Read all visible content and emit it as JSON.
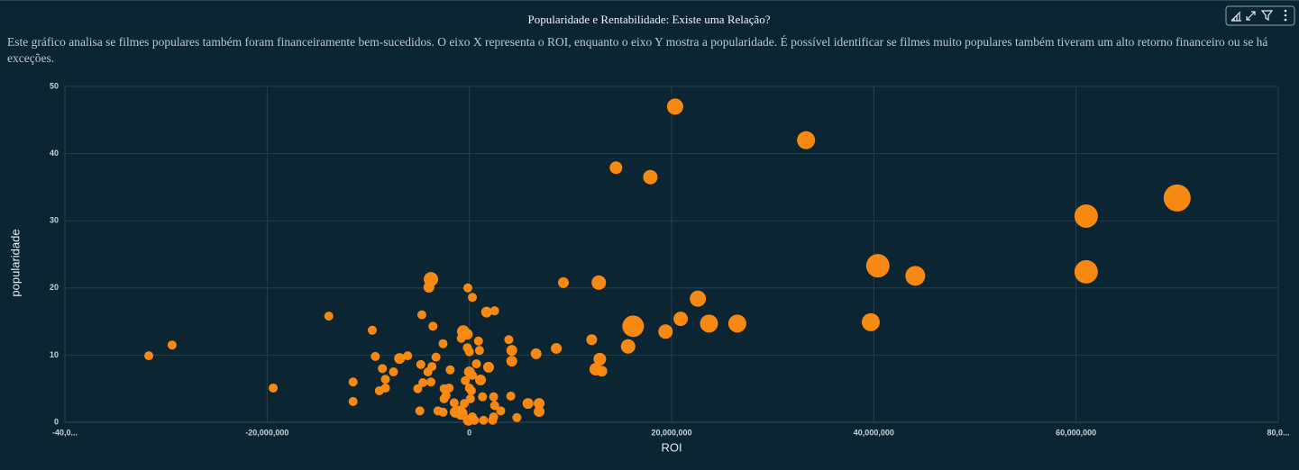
{
  "chart_data": {
    "type": "scatter",
    "title": "Popularidade e Rentabilidade: Existe uma Relação?",
    "subtitle": "Este gráfico analisa se filmes populares também foram financeiramente bem-sucedidos. O eixo X representa o ROI, enquanto o eixo Y mostra a popularidade. É possível identificar se filmes muito populares também tiveram um alto retorno financeiro ou se há exceções.",
    "x_label": "ROI",
    "y_label": "popularidade",
    "color": "#ff8c12",
    "grid": true,
    "xlim": [
      -40000000,
      80000000
    ],
    "ylim": [
      0,
      50
    ],
    "xticks": [
      {
        "value": -40000000,
        "label": "-40,0..."
      },
      {
        "value": -20000000,
        "label": "-20,000,000"
      },
      0,
      {
        "value": 20000000,
        "label": "20,000,000"
      },
      {
        "value": 40000000,
        "label": "40,000,000"
      },
      {
        "value": 60000000,
        "label": "60,000,000"
      },
      {
        "value": 80000000,
        "label": "80,0..."
      }
    ],
    "yticks": [
      0,
      10,
      20,
      30,
      40,
      50
    ],
    "x": [
      20350000,
      33300000,
      14500000,
      17900000,
      70000000,
      61000000,
      40400000,
      61000000,
      44100000,
      39700000,
      26500000,
      23700000,
      16200000,
      20900000,
      22600000,
      19400000,
      15700000,
      12800000,
      9300000,
      12100000,
      12500000,
      12900000,
      13100000,
      8600000,
      6600000,
      6900000,
      6900000,
      5800000,
      4700000,
      3900000,
      4200000,
      4200000,
      4100000,
      2500000,
      1700000,
      -3800000,
      -4000000,
      -150000,
      300000,
      -4700000,
      -3600000,
      -13900000,
      -9600000,
      -29400000,
      -31700000,
      -19400000,
      -11500000,
      -11500000,
      -9300000,
      -8600000,
      -7500000,
      -6900000,
      -6100000,
      -8300000,
      -8900000,
      -8300000,
      -4800000,
      -4100000,
      -3700000,
      -3300000,
      -2600000,
      -1900000,
      -3800000,
      -4600000,
      -5100000,
      -2500000,
      -2000000,
      -2300000,
      -2500000,
      -4900000,
      -3100000,
      -2600000,
      -1500000,
      -1400000,
      -950000,
      -800000,
      -600000,
      -200000,
      -800000,
      -200000,
      0,
      900000,
      1000000,
      700000,
      1900000,
      0,
      300000,
      1100000,
      -400000,
      0,
      200000,
      100000,
      -500000,
      1300000,
      2400000,
      2500000,
      3100000,
      2400000,
      1400000,
      -100000,
      300000,
      500000,
      2300000
    ],
    "y": [
      47.0,
      42.0,
      37.9,
      36.5,
      33.4,
      30.7,
      23.3,
      22.4,
      21.8,
      14.9,
      14.7,
      14.7,
      14.3,
      15.4,
      18.4,
      13.5,
      11.3,
      20.8,
      20.8,
      12.3,
      7.9,
      9.4,
      7.6,
      11.0,
      10.2,
      2.8,
      1.6,
      2.8,
      0.7,
      12.3,
      10.7,
      9.1,
      3.9,
      16.6,
      16.4,
      21.3,
      20.1,
      20.0,
      18.6,
      16.0,
      14.3,
      15.8,
      13.7,
      11.5,
      9.9,
      5.1,
      6.0,
      3.1,
      9.8,
      8.0,
      7.5,
      9.5,
      9.9,
      6.4,
      4.7,
      5.1,
      8.6,
      7.5,
      8.3,
      9.7,
      11.7,
      7.8,
      6.0,
      5.9,
      5.0,
      5.0,
      5.1,
      4.0,
      3.5,
      1.7,
      1.7,
      1.5,
      2.9,
      1.5,
      1.7,
      1.3,
      13.5,
      13.1,
      12.5,
      11.1,
      10.5,
      12.1,
      10.7,
      8.7,
      8.2,
      7.5,
      7.0,
      6.3,
      6.2,
      5.1,
      4.7,
      3.5,
      2.8,
      3.8,
      3.8,
      2.5,
      1.7,
      0.8,
      0.3,
      0.3,
      0.8,
      0.3,
      0.3
    ],
    "sizes": [
      9,
      10,
      7,
      8,
      15,
      13,
      13,
      13,
      11,
      10,
      10,
      10,
      12,
      8,
      9,
      8,
      8,
      8,
      6,
      6,
      7,
      7,
      6,
      6,
      6,
      6,
      6,
      6,
      5,
      5,
      6,
      6,
      5,
      5,
      6,
      8,
      6,
      5,
      5,
      5,
      5,
      5,
      5,
      5,
      5,
      5,
      5,
      5,
      5,
      5,
      5,
      6,
      5,
      5,
      5,
      5,
      5,
      5,
      5,
      5,
      5,
      5,
      5,
      5,
      5,
      5,
      5,
      5,
      5,
      5,
      5,
      5,
      5,
      6,
      6,
      7,
      7,
      6,
      5,
      5,
      5,
      5,
      5,
      5,
      6,
      6,
      5,
      6,
      5,
      5,
      5,
      5,
      5,
      5,
      5,
      5,
      5,
      5,
      5,
      6,
      5,
      5,
      5
    ]
  }
}
